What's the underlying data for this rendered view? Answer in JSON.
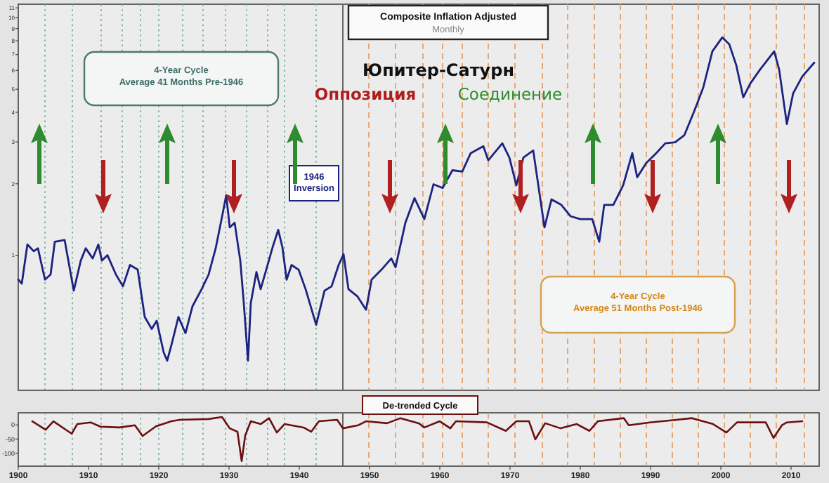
{
  "chart_data": [
    {
      "type": "line",
      "title": "Composite Inflation Adjusted",
      "subtitle": "Monthly",
      "log": true,
      "tick_labels": "y",
      "xlim": [
        1900,
        2014
      ],
      "ylim": [
        0.27,
        11.4
      ],
      "yticks": [
        1,
        2,
        3,
        4,
        5,
        6,
        7,
        8,
        9,
        10,
        11
      ],
      "annotations": [
        "Юпитер-Сатурн",
        "Оппозиция",
        "Соединение",
        "4-Year Cycle\nAverage 41 Months Pre-1946",
        "4-Year Cycle\nAverage 51 Months Post-1946"
      ],
      "x": [
        1900,
        1900.5,
        1901.3,
        1902.2,
        1902.8,
        1903.8,
        1904.6,
        1905.2,
        1906.6,
        1907.9,
        1908.9,
        1909.6,
        1910.6,
        1911.4,
        1911.9,
        1912.7,
        1913.9,
        1914.9,
        1915.9,
        1917,
        1918,
        1919,
        1919.7,
        1920.7,
        1921.2,
        1921.9,
        1922.8,
        1923.8,
        1924.8,
        1926.1,
        1927.1,
        1928.1,
        1929.1,
        1929.6,
        1930.1,
        1930.8,
        1931.6,
        1932.1,
        1932.7,
        1933.1,
        1933.9,
        1934.5,
        1935.3,
        1936.2,
        1937,
        1937.6,
        1938.2,
        1938.9,
        1939.9,
        1940.9,
        1942.4,
        1943.6,
        1944.6,
        1945.6,
        1946.3,
        1947,
        1948.3,
        1949.5,
        1950.3,
        1951.7,
        1953.1,
        1953.7,
        1955.1,
        1956.4,
        1957.8,
        1959.1,
        1960.4,
        1961.8,
        1963.2,
        1964.4,
        1966.2,
        1966.9,
        1968.9,
        1969.9,
        1970.9,
        1971.9,
        1973.3,
        1974.9,
        1975.9,
        1977.3,
        1978.6,
        1980,
        1981.7,
        1982.7,
        1983.4,
        1984.7,
        1986.1,
        1987.4,
        1988.1,
        1989.4,
        1990.8,
        1992.1,
        1993.5,
        1994.8,
        1996.2,
        1997.5,
        1998.8,
        2000.2,
        2001.2,
        2002.2,
        2003.2,
        2004.2,
        2005.6,
        2007.6,
        2008.3,
        2009.4,
        2010.3,
        2011.6,
        2013.3
      ],
      "series": [
        {
          "color": "#1c2380",
          "values": [
            0.79,
            0.76,
            1.11,
            1.04,
            1.07,
            0.79,
            0.83,
            1.14,
            1.16,
            0.71,
            0.95,
            1.07,
            0.97,
            1.11,
            0.95,
            1.0,
            0.83,
            0.74,
            0.91,
            0.87,
            0.55,
            0.49,
            0.53,
            0.39,
            0.36,
            0.43,
            0.55,
            0.47,
            0.61,
            0.72,
            0.83,
            1.07,
            1.5,
            1.79,
            1.31,
            1.37,
            0.95,
            0.63,
            0.36,
            0.63,
            0.85,
            0.72,
            0.87,
            1.08,
            1.28,
            1.08,
            0.79,
            0.91,
            0.87,
            0.72,
            0.51,
            0.71,
            0.74,
            0.91,
            1.01,
            0.72,
            0.67,
            0.59,
            0.79,
            0.87,
            0.97,
            0.89,
            1.37,
            1.74,
            1.42,
            1.99,
            1.92,
            2.28,
            2.25,
            2.69,
            2.88,
            2.51,
            2.96,
            2.58,
            1.97,
            2.58,
            2.76,
            1.31,
            1.72,
            1.63,
            1.46,
            1.42,
            1.42,
            1.14,
            1.63,
            1.63,
            1.97,
            2.69,
            2.13,
            2.45,
            2.69,
            2.96,
            2.99,
            3.2,
            4.03,
            5.08,
            7.22,
            8.26,
            7.74,
            6.31,
            4.62,
            5.29,
            6.06,
            7.22,
            6.06,
            3.57,
            4.81,
            5.66,
            6.47
          ]
        }
      ],
      "ref_lines": [
        {
          "axis": "x",
          "value": 1903.8,
          "color": "#6fae9c",
          "line_style": "dotted"
        },
        {
          "axis": "x",
          "value": 1907.7,
          "color": "#6fae9c",
          "line_style": "dotted"
        },
        {
          "axis": "x",
          "value": 1911.8,
          "color": "#6fae9c",
          "line_style": "dotted"
        },
        {
          "axis": "x",
          "value": 1914.8,
          "color": "#6fae9c",
          "line_style": "dotted"
        },
        {
          "axis": "x",
          "value": 1917.4,
          "color": "#6fae9c",
          "line_style": "dotted"
        },
        {
          "axis": "x",
          "value": 1920,
          "color": "#6fae9c",
          "line_style": "dotted"
        },
        {
          "axis": "x",
          "value": 1923.4,
          "color": "#6fae9c",
          "line_style": "dotted"
        },
        {
          "axis": "x",
          "value": 1926.3,
          "color": "#6fae9c",
          "line_style": "dotted"
        },
        {
          "axis": "x",
          "value": 1929.5,
          "color": "#6fae9c",
          "line_style": "dotted"
        },
        {
          "axis": "x",
          "value": 1932.5,
          "color": "#6fae9c",
          "line_style": "dotted"
        },
        {
          "axis": "x",
          "value": 1935.5,
          "color": "#6fae9c",
          "line_style": "dotted"
        },
        {
          "axis": "x",
          "value": 1937.9,
          "color": "#6fae9c",
          "line_style": "dotted"
        },
        {
          "axis": "x",
          "value": 1942.4,
          "color": "#6fae9c",
          "line_style": "dotted"
        },
        {
          "axis": "x",
          "value": 1946.2,
          "color": "#666666",
          "line_style": "solid",
          "label": "1946 Inversion"
        },
        {
          "axis": "x",
          "value": 1949.9,
          "color": "#e3a26a",
          "line_style": "dashed"
        },
        {
          "axis": "x",
          "value": 1953.7,
          "color": "#e3a26a",
          "line_style": "dashed"
        },
        {
          "axis": "x",
          "value": 1957.6,
          "color": "#e3a26a",
          "line_style": "dashed"
        },
        {
          "axis": "x",
          "value": 1960.4,
          "color": "#e3a26a",
          "line_style": "dashed"
        },
        {
          "axis": "x",
          "value": 1963.2,
          "color": "#e3a26a",
          "line_style": "dashed"
        },
        {
          "axis": "x",
          "value": 1966.9,
          "color": "#e3a26a",
          "line_style": "dashed"
        },
        {
          "axis": "x",
          "value": 1970.7,
          "color": "#e3a26a",
          "line_style": "dashed"
        },
        {
          "axis": "x",
          "value": 1974.6,
          "color": "#e3a26a",
          "line_style": "dashed"
        },
        {
          "axis": "x",
          "value": 1978.2,
          "color": "#e3a26a",
          "line_style": "dashed"
        },
        {
          "axis": "x",
          "value": 1982,
          "color": "#e3a26a",
          "line_style": "dashed"
        },
        {
          "axis": "x",
          "value": 1985.7,
          "color": "#e3a26a",
          "line_style": "dashed"
        },
        {
          "axis": "x",
          "value": 1989.4,
          "color": "#e3a26a",
          "line_style": "dashed"
        },
        {
          "axis": "x",
          "value": 1993.1,
          "color": "#e3a26a",
          "line_style": "dashed"
        },
        {
          "axis": "x",
          "value": 1996.8,
          "color": "#e3a26a",
          "line_style": "dashed"
        },
        {
          "axis": "x",
          "value": 2000.5,
          "color": "#e3a26a",
          "line_style": "dashed"
        },
        {
          "axis": "x",
          "value": 2004.2,
          "color": "#e3a26a",
          "line_style": "dashed"
        },
        {
          "axis": "x",
          "value": 2007.9,
          "color": "#e3a26a",
          "line_style": "dashed"
        },
        {
          "axis": "x",
          "value": 2011.9,
          "color": "#e3a26a",
          "line_style": "dashed"
        }
      ]
    },
    {
      "type": "line",
      "title": "De-trended Cycle",
      "xlim": [
        1900,
        2014
      ],
      "ylim": [
        -146,
        43
      ],
      "xticks": [
        1900,
        1910,
        1920,
        1930,
        1940,
        1950,
        1960,
        1970,
        1980,
        1990,
        2000,
        2010
      ],
      "yticks": [
        0,
        -50,
        -100
      ],
      "x": [
        1902,
        1903.9,
        1905,
        1907.6,
        1908.4,
        1910.3,
        1911.7,
        1914.4,
        1916.6,
        1917.7,
        1919.6,
        1921.8,
        1923,
        1927.1,
        1929,
        1930.1,
        1931.2,
        1931.8,
        1932.3,
        1933.1,
        1934.5,
        1935.7,
        1936.8,
        1937.9,
        1940.6,
        1941.7,
        1942.8,
        1945.4,
        1946.2,
        1948.4,
        1949.5,
        1952.5,
        1954.4,
        1957,
        1957.8,
        1960,
        1961.5,
        1962.3,
        1966.7,
        1969.4,
        1970.9,
        1972.7,
        1973.6,
        1975,
        1977.2,
        1979.5,
        1981.3,
        1982.5,
        1986.2,
        1986.9,
        1989.9,
        1993.7,
        1995.9,
        1998.9,
        2000.8,
        2002.3,
        2006.4,
        2007.5,
        2008.7,
        2009.4,
        2011.6
      ],
      "series": [
        {
          "color": "#6b1010",
          "values": [
            13,
            -17,
            13,
            -31,
            3,
            9,
            -6,
            -9,
            -1,
            -39,
            -5,
            13,
            18,
            21,
            28,
            -12,
            -24,
            -128,
            -38,
            13,
            3,
            24,
            -27,
            3,
            -9,
            -24,
            13,
            18,
            -12,
            -1,
            13,
            6,
            24,
            6,
            -9,
            13,
            -12,
            13,
            9,
            -21,
            13,
            13,
            -51,
            6,
            -12,
            3,
            -21,
            13,
            24,
            -1,
            9,
            18,
            24,
            3,
            -27,
            9,
            9,
            -46,
            -1,
            9,
            13
          ]
        }
      ],
      "ref_lines": [
        {
          "axis": "x",
          "value": 1903.8,
          "color": "#6fae9c",
          "line_style": "dotted"
        },
        {
          "axis": "x",
          "value": 1907.7,
          "color": "#6fae9c",
          "line_style": "dotted"
        },
        {
          "axis": "x",
          "value": 1911.8,
          "color": "#6fae9c",
          "line_style": "dotted"
        },
        {
          "axis": "x",
          "value": 1914.8,
          "color": "#6fae9c",
          "line_style": "dotted"
        },
        {
          "axis": "x",
          "value": 1917.4,
          "color": "#6fae9c",
          "line_style": "dotted"
        },
        {
          "axis": "x",
          "value": 1920,
          "color": "#6fae9c",
          "line_style": "dotted"
        },
        {
          "axis": "x",
          "value": 1923.4,
          "color": "#6fae9c",
          "line_style": "dotted"
        },
        {
          "axis": "x",
          "value": 1926.3,
          "color": "#6fae9c",
          "line_style": "dotted"
        },
        {
          "axis": "x",
          "value": 1929.5,
          "color": "#6fae9c",
          "line_style": "dotted"
        },
        {
          "axis": "x",
          "value": 1932.5,
          "color": "#6fae9c",
          "line_style": "dotted"
        },
        {
          "axis": "x",
          "value": 1935.5,
          "color": "#6fae9c",
          "line_style": "dotted"
        },
        {
          "axis": "x",
          "value": 1937.9,
          "color": "#6fae9c",
          "line_style": "dotted"
        },
        {
          "axis": "x",
          "value": 1942.4,
          "color": "#6fae9c",
          "line_style": "dotted"
        },
        {
          "axis": "x",
          "value": 1946.2,
          "color": "#666666",
          "line_style": "solid"
        },
        {
          "axis": "x",
          "value": 1949.9,
          "color": "#e3a26a",
          "line_style": "dashed"
        },
        {
          "axis": "x",
          "value": 1953.7,
          "color": "#e3a26a",
          "line_style": "dashed"
        },
        {
          "axis": "x",
          "value": 1957.6,
          "color": "#e3a26a",
          "line_style": "dashed"
        },
        {
          "axis": "x",
          "value": 1960.4,
          "color": "#e3a26a",
          "line_style": "dashed"
        },
        {
          "axis": "x",
          "value": 1963.2,
          "color": "#e3a26a",
          "line_style": "dashed"
        },
        {
          "axis": "x",
          "value": 1966.9,
          "color": "#e3a26a",
          "line_style": "dashed"
        },
        {
          "axis": "x",
          "value": 1970.7,
          "color": "#e3a26a",
          "line_style": "dashed"
        },
        {
          "axis": "x",
          "value": 1974.6,
          "color": "#e3a26a",
          "line_style": "dashed"
        },
        {
          "axis": "x",
          "value": 1978.2,
          "color": "#e3a26a",
          "line_style": "dashed"
        },
        {
          "axis": "x",
          "value": 1982,
          "color": "#e3a26a",
          "line_style": "dashed"
        },
        {
          "axis": "x",
          "value": 1985.7,
          "color": "#e3a26a",
          "line_style": "dashed"
        },
        {
          "axis": "x",
          "value": 1989.4,
          "color": "#e3a26a",
          "line_style": "dashed"
        },
        {
          "axis": "x",
          "value": 1993.1,
          "color": "#e3a26a",
          "line_style": "dashed"
        },
        {
          "axis": "x",
          "value": 1996.8,
          "color": "#e3a26a",
          "line_style": "dashed"
        },
        {
          "axis": "x",
          "value": 2000.5,
          "color": "#e3a26a",
          "line_style": "dashed"
        },
        {
          "axis": "x",
          "value": 2004.2,
          "color": "#e3a26a",
          "line_style": "dashed"
        },
        {
          "axis": "x",
          "value": 2007.9,
          "color": "#e3a26a",
          "line_style": "dashed"
        },
        {
          "axis": "x",
          "value": 2011.9,
          "color": "#e3a26a",
          "line_style": "dashed"
        }
      ]
    }
  ]
}
